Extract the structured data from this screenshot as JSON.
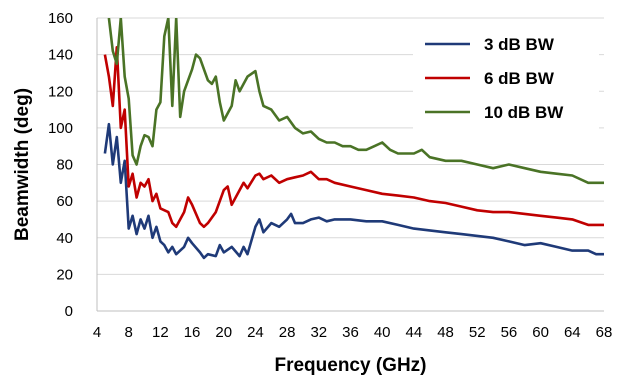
{
  "chart_data": {
    "type": "line",
    "title": "",
    "xlabel": "Frequency  (GHz)",
    "ylabel": "Beamwidth  (deg)",
    "xlim": [
      4,
      68
    ],
    "ylim": [
      0,
      160
    ],
    "xticks": [
      4,
      8,
      12,
      16,
      20,
      24,
      28,
      32,
      36,
      40,
      44,
      48,
      52,
      56,
      60,
      64,
      68
    ],
    "yticks": [
      0,
      20,
      40,
      60,
      80,
      100,
      120,
      140,
      160
    ],
    "grid": "horizontal",
    "legend_position": "top-right",
    "series": [
      {
        "name": "3 dB BW",
        "color": "#1f3a78",
        "points": [
          [
            5,
            86
          ],
          [
            5.5,
            102
          ],
          [
            6,
            80
          ],
          [
            6.5,
            95
          ],
          [
            7,
            70
          ],
          [
            7.5,
            82
          ],
          [
            8,
            45
          ],
          [
            8.5,
            52
          ],
          [
            9,
            42
          ],
          [
            9.5,
            50
          ],
          [
            10,
            45
          ],
          [
            10.5,
            52
          ],
          [
            11,
            40
          ],
          [
            11.5,
            46
          ],
          [
            12,
            38
          ],
          [
            12.5,
            36
          ],
          [
            13,
            32
          ],
          [
            13.5,
            35
          ],
          [
            14,
            31
          ],
          [
            15,
            35
          ],
          [
            15.5,
            40
          ],
          [
            16,
            37
          ],
          [
            17,
            32
          ],
          [
            17.5,
            29
          ],
          [
            18,
            31
          ],
          [
            19,
            30
          ],
          [
            19.5,
            36
          ],
          [
            20,
            32
          ],
          [
            21,
            35
          ],
          [
            22,
            30
          ],
          [
            22.5,
            35
          ],
          [
            23,
            31
          ],
          [
            24,
            46
          ],
          [
            24.5,
            50
          ],
          [
            25,
            43
          ],
          [
            26,
            48
          ],
          [
            27,
            46
          ],
          [
            28,
            50
          ],
          [
            28.5,
            53
          ],
          [
            29,
            48
          ],
          [
            30,
            48
          ],
          [
            31,
            50
          ],
          [
            32,
            51
          ],
          [
            33,
            49
          ],
          [
            34,
            50
          ],
          [
            36,
            50
          ],
          [
            38,
            49
          ],
          [
            40,
            49
          ],
          [
            42,
            47
          ],
          [
            44,
            45
          ],
          [
            46,
            44
          ],
          [
            48,
            43
          ],
          [
            50,
            42
          ],
          [
            52,
            41
          ],
          [
            54,
            40
          ],
          [
            56,
            38
          ],
          [
            58,
            36
          ],
          [
            60,
            37
          ],
          [
            62,
            35
          ],
          [
            64,
            33
          ],
          [
            66,
            33
          ],
          [
            67,
            31
          ],
          [
            68,
            31
          ]
        ]
      },
      {
        "name": "6 dB BW",
        "color": "#c00000",
        "points": [
          [
            5,
            140
          ],
          [
            5.5,
            128
          ],
          [
            6,
            112
          ],
          [
            6.5,
            144
          ],
          [
            7,
            100
          ],
          [
            7.5,
            110
          ],
          [
            8,
            68
          ],
          [
            8.5,
            75
          ],
          [
            9,
            62
          ],
          [
            9.5,
            70
          ],
          [
            10,
            68
          ],
          [
            10.5,
            72
          ],
          [
            11,
            60
          ],
          [
            11.5,
            64
          ],
          [
            12,
            56
          ],
          [
            13,
            54
          ],
          [
            13.5,
            48
          ],
          [
            14,
            46
          ],
          [
            15,
            54
          ],
          [
            15.5,
            62
          ],
          [
            16,
            58
          ],
          [
            17,
            48
          ],
          [
            17.5,
            46
          ],
          [
            18,
            48
          ],
          [
            19,
            54
          ],
          [
            19.5,
            60
          ],
          [
            20,
            66
          ],
          [
            20.5,
            68
          ],
          [
            21,
            58
          ],
          [
            22,
            66
          ],
          [
            22.5,
            70
          ],
          [
            23,
            67
          ],
          [
            24,
            74
          ],
          [
            24.5,
            75
          ],
          [
            25,
            72
          ],
          [
            26,
            74
          ],
          [
            27,
            70
          ],
          [
            28,
            72
          ],
          [
            29,
            73
          ],
          [
            30,
            74
          ],
          [
            31,
            76
          ],
          [
            32,
            72
          ],
          [
            33,
            72
          ],
          [
            34,
            70
          ],
          [
            36,
            68
          ],
          [
            38,
            66
          ],
          [
            40,
            64
          ],
          [
            42,
            63
          ],
          [
            44,
            62
          ],
          [
            46,
            60
          ],
          [
            48,
            59
          ],
          [
            50,
            57
          ],
          [
            52,
            55
          ],
          [
            54,
            54
          ],
          [
            56,
            54
          ],
          [
            58,
            53
          ],
          [
            60,
            52
          ],
          [
            62,
            51
          ],
          [
            64,
            50
          ],
          [
            66,
            47
          ],
          [
            68,
            47
          ]
        ]
      },
      {
        "name": "10 dB BW",
        "color": "#4a7326",
        "points": [
          [
            5.5,
            160
          ],
          [
            6,
            142
          ],
          [
            6.5,
            135
          ],
          [
            7,
            160
          ],
          [
            7.5,
            128
          ],
          [
            8,
            116
          ],
          [
            8.5,
            85
          ],
          [
            9,
            80
          ],
          [
            9.5,
            90
          ],
          [
            10,
            96
          ],
          [
            10.5,
            95
          ],
          [
            11,
            90
          ],
          [
            11.5,
            110
          ],
          [
            12,
            114
          ],
          [
            12.5,
            150
          ],
          [
            13,
            160
          ],
          [
            13.5,
            112
          ],
          [
            14,
            160
          ],
          [
            14.5,
            106
          ],
          [
            15,
            120
          ],
          [
            16,
            132
          ],
          [
            16.5,
            140
          ],
          [
            17,
            138
          ],
          [
            18,
            126
          ],
          [
            18.5,
            124
          ],
          [
            19,
            128
          ],
          [
            19.5,
            114
          ],
          [
            20,
            104
          ],
          [
            21,
            112
          ],
          [
            21.5,
            126
          ],
          [
            22,
            120
          ],
          [
            23,
            128
          ],
          [
            24,
            131
          ],
          [
            24.5,
            120
          ],
          [
            25,
            112
          ],
          [
            26,
            110
          ],
          [
            27,
            104
          ],
          [
            28,
            106
          ],
          [
            29,
            100
          ],
          [
            30,
            97
          ],
          [
            31,
            98
          ],
          [
            32,
            94
          ],
          [
            33,
            92
          ],
          [
            34,
            92
          ],
          [
            35,
            90
          ],
          [
            36,
            90
          ],
          [
            37,
            88
          ],
          [
            38,
            88
          ],
          [
            39,
            90
          ],
          [
            40,
            92
          ],
          [
            41,
            88
          ],
          [
            42,
            86
          ],
          [
            43,
            86
          ],
          [
            44,
            86
          ],
          [
            45,
            88
          ],
          [
            46,
            84
          ],
          [
            48,
            82
          ],
          [
            50,
            82
          ],
          [
            52,
            80
          ],
          [
            54,
            78
          ],
          [
            56,
            80
          ],
          [
            58,
            78
          ],
          [
            60,
            76
          ],
          [
            62,
            75
          ],
          [
            64,
            74
          ],
          [
            66,
            70
          ],
          [
            68,
            70
          ]
        ]
      }
    ]
  }
}
